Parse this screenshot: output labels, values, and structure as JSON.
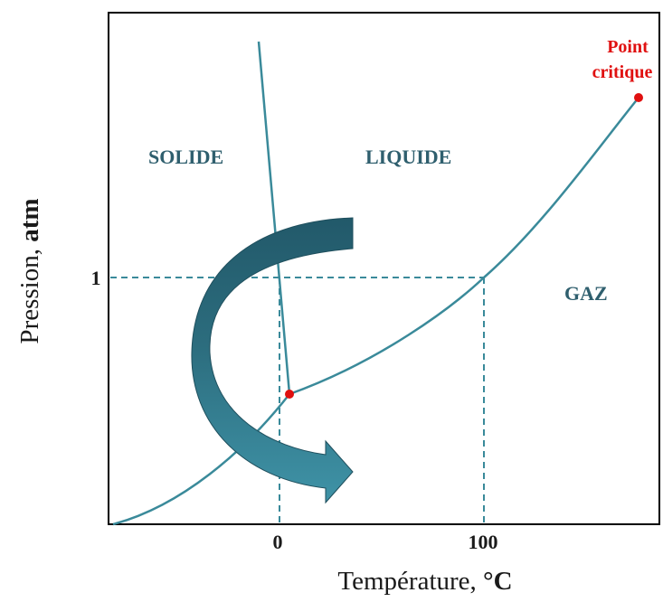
{
  "diagram": {
    "regions": {
      "solid": "SOLIDE",
      "liquid": "LIQUIDE",
      "gas": "GAZ"
    },
    "critical_point": {
      "line1": "Point",
      "line2": "critique"
    },
    "x_axis": {
      "title": "Température, ",
      "unit": "°C",
      "ticks": [
        "0",
        "100"
      ]
    },
    "y_axis": {
      "title": "Pression, ",
      "unit": "atm",
      "ticks": [
        "1"
      ]
    },
    "colors": {
      "curve": "#3a8a9a",
      "arrow_dark": "#2a6676",
      "arrow_light": "#3d8fa3",
      "point": "#e01010",
      "frame": "#000000"
    }
  }
}
